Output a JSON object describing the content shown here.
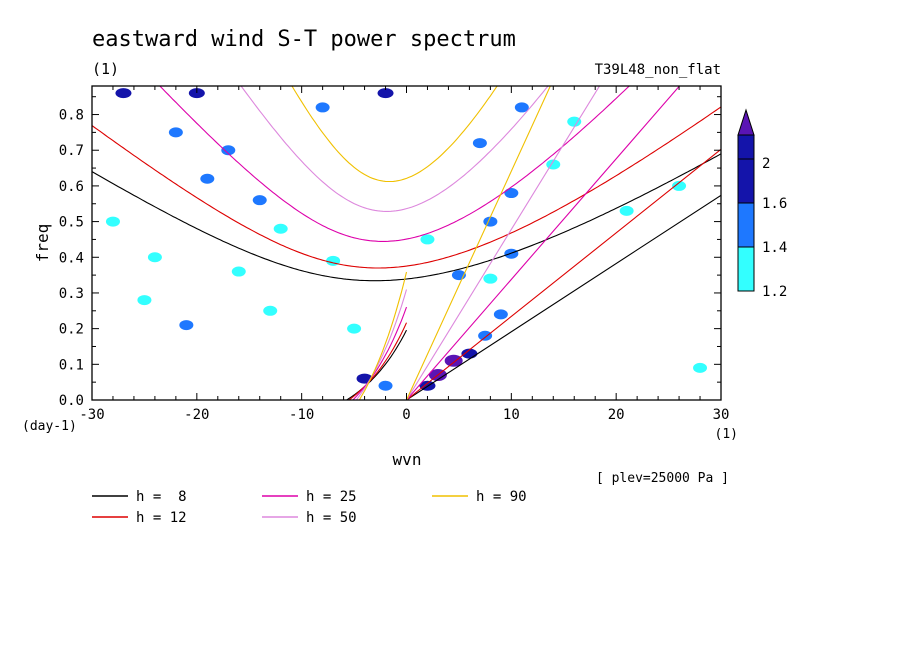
{
  "chart_data": {
    "type": "contour",
    "title": "eastward wind S-T power spectrum",
    "subtitle_left": "(1)",
    "subtitle_right": "T39L48_non_flat",
    "xlabel": "wvn",
    "ylabel": "freq",
    "x_unit": "(1)",
    "y_unit": "(day-1)",
    "xlim": [
      -30,
      30
    ],
    "ylim": [
      0,
      0.88
    ],
    "x_ticks": [
      -30,
      -20,
      -10,
      0,
      10,
      20,
      30
    ],
    "x_tick_labels": [
      "-30",
      "-20",
      "-10",
      "0",
      "10",
      "20",
      "30"
    ],
    "y_ticks": [
      0,
      0.1,
      0.2,
      0.3,
      0.4,
      0.5,
      0.6,
      0.7,
      0.8
    ],
    "y_tick_labels": [
      "0.0",
      "0.1",
      "0.2",
      "0.3",
      "0.4",
      "0.5",
      "0.6",
      "0.7",
      "0.8"
    ],
    "annotation": "[ plev=25000 Pa ]",
    "colorbar": {
      "levels": [
        1.2,
        1.4,
        1.6,
        2
      ],
      "labels": [
        "1.2",
        "1.4",
        "1.6",
        "2"
      ],
      "colors": [
        "#33ffff",
        "#1e78ff",
        "#1414aa",
        "#5a14b4"
      ]
    },
    "dispersion_curves": [
      {
        "name": "h =  8",
        "h": 8,
        "color": "#000000"
      },
      {
        "name": "h = 12",
        "h": 12,
        "color": "#dd0000"
      },
      {
        "name": "h = 25",
        "h": 25,
        "color": "#dd00aa"
      },
      {
        "name": "h = 50",
        "h": 50,
        "color": "#dd88dd"
      },
      {
        "name": "h = 90",
        "h": 90,
        "color": "#f0c000"
      }
    ],
    "spectral_blobs": [
      {
        "x": 3,
        "y": 0.07,
        "level": 2
      },
      {
        "x": 4.5,
        "y": 0.11,
        "level": 2
      },
      {
        "x": 2,
        "y": 0.04,
        "level": 1.6
      },
      {
        "x": 6,
        "y": 0.13,
        "level": 1.6
      },
      {
        "x": 7.5,
        "y": 0.18,
        "level": 1.4
      },
      {
        "x": 9,
        "y": 0.24,
        "level": 1.4
      },
      {
        "x": -4,
        "y": 0.06,
        "level": 1.6
      },
      {
        "x": -2,
        "y": 0.04,
        "level": 1.4
      },
      {
        "x": -19,
        "y": 0.62,
        "level": 1.4
      },
      {
        "x": -17,
        "y": 0.7,
        "level": 1.4
      },
      {
        "x": -14,
        "y": 0.56,
        "level": 1.4
      },
      {
        "x": -22,
        "y": 0.75,
        "level": 1.4
      },
      {
        "x": -27,
        "y": 0.86,
        "level": 1.6
      },
      {
        "x": -20,
        "y": 0.86,
        "level": 1.6
      },
      {
        "x": -8,
        "y": 0.82,
        "level": 1.4
      },
      {
        "x": -2,
        "y": 0.86,
        "level": 1.6
      },
      {
        "x": 7,
        "y": 0.72,
        "level": 1.4
      },
      {
        "x": 11,
        "y": 0.82,
        "level": 1.4
      },
      {
        "x": 10,
        "y": 0.58,
        "level": 1.4
      },
      {
        "x": 8,
        "y": 0.5,
        "level": 1.4
      },
      {
        "x": 10,
        "y": 0.41,
        "level": 1.4
      },
      {
        "x": 5,
        "y": 0.35,
        "level": 1.4
      },
      {
        "x": 8,
        "y": 0.34,
        "level": 1.2
      },
      {
        "x": -24,
        "y": 0.4,
        "level": 1.2
      },
      {
        "x": -7,
        "y": 0.39,
        "level": 1.2
      },
      {
        "x": -21,
        "y": 0.21,
        "level": 1.4
      },
      {
        "x": -13,
        "y": 0.25,
        "level": 1.2
      },
      {
        "x": -28,
        "y": 0.5,
        "level": 1.2
      },
      {
        "x": -12,
        "y": 0.48,
        "level": 1.2
      },
      {
        "x": 2,
        "y": 0.45,
        "level": 1.2
      },
      {
        "x": 21,
        "y": 0.53,
        "level": 1.2
      },
      {
        "x": 26,
        "y": 0.6,
        "level": 1.2
      },
      {
        "x": 14,
        "y": 0.66,
        "level": 1.2
      },
      {
        "x": -25,
        "y": 0.28,
        "level": 1.2
      },
      {
        "x": -5,
        "y": 0.2,
        "level": 1.2
      },
      {
        "x": 16,
        "y": 0.78,
        "level": 1.2
      },
      {
        "x": -16,
        "y": 0.36,
        "level": 1.2
      },
      {
        "x": 28,
        "y": 0.09,
        "level": 1.2
      }
    ]
  }
}
